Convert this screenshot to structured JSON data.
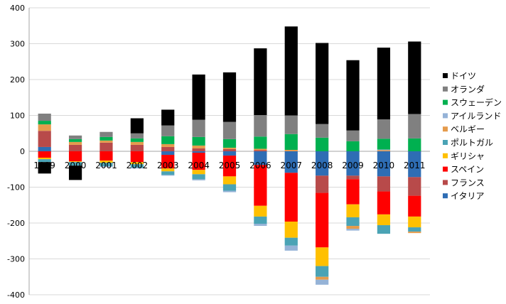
{
  "chart_data": {
    "type": "bar",
    "stacked": true,
    "title": "",
    "xlabel": "",
    "ylabel": "",
    "ylim": [
      -400,
      400
    ],
    "yticks": [
      -400,
      -300,
      -200,
      -100,
      0,
      100,
      200,
      300,
      400
    ],
    "grid": "horizontal",
    "legend_position": "right",
    "categories": [
      "1999",
      "2000",
      "2001",
      "2002",
      "2003",
      "2004",
      "2005",
      "2006",
      "2007",
      "2008",
      "2009",
      "2010",
      "2011"
    ],
    "series": [
      {
        "name": "イタリア",
        "color": "#2e6db4",
        "values": [
          12,
          0,
          0,
          0,
          -10,
          -4,
          -12,
          -38,
          -60,
          -68,
          -68,
          -70,
          -72
        ]
      },
      {
        "name": "フランス",
        "color": "#b84a4a",
        "values": [
          45,
          18,
          24,
          18,
          12,
          8,
          6,
          3,
          0,
          -48,
          -10,
          -42,
          -52
        ]
      },
      {
        "name": "スペイン",
        "color": "#ff0000",
        "values": [
          -18,
          -28,
          -26,
          -30,
          -38,
          -48,
          -58,
          -114,
          -136,
          -152,
          -70,
          -64,
          -58
        ]
      },
      {
        "name": "ギリシャ",
        "color": "#ffc000",
        "values": [
          -4,
          -2,
          -6,
          -6,
          -8,
          -12,
          -22,
          -30,
          -45,
          -52,
          -36,
          -30,
          -30
        ]
      },
      {
        "name": "ポルトガル",
        "color": "#4aa3b5",
        "values": [
          -8,
          -10,
          -10,
          -10,
          -10,
          -14,
          -18,
          -20,
          -22,
          -30,
          -24,
          -24,
          -12
        ]
      },
      {
        "name": "ベルギー",
        "color": "#e59b4c",
        "values": [
          18,
          8,
          6,
          8,
          8,
          8,
          4,
          4,
          4,
          -8,
          -8,
          3,
          -4
        ]
      },
      {
        "name": "アイルランド",
        "color": "#95b3d7",
        "values": [
          0,
          0,
          -2,
          -2,
          -2,
          -3,
          -4,
          -6,
          -14,
          -14,
          -5,
          2,
          0
        ]
      },
      {
        "name": "スウェーデン",
        "color": "#00b050",
        "values": [
          10,
          8,
          10,
          10,
          22,
          24,
          24,
          34,
          44,
          38,
          28,
          30,
          36
        ]
      },
      {
        "name": "オランダ",
        "color": "#808080",
        "values": [
          20,
          10,
          14,
          14,
          30,
          48,
          48,
          60,
          52,
          38,
          30,
          54,
          68
        ]
      },
      {
        "name": "ドイツ",
        "color": "#000000",
        "values": [
          -32,
          -40,
          0,
          42,
          44,
          126,
          138,
          186,
          248,
          226,
          196,
          200,
          202
        ]
      }
    ]
  }
}
